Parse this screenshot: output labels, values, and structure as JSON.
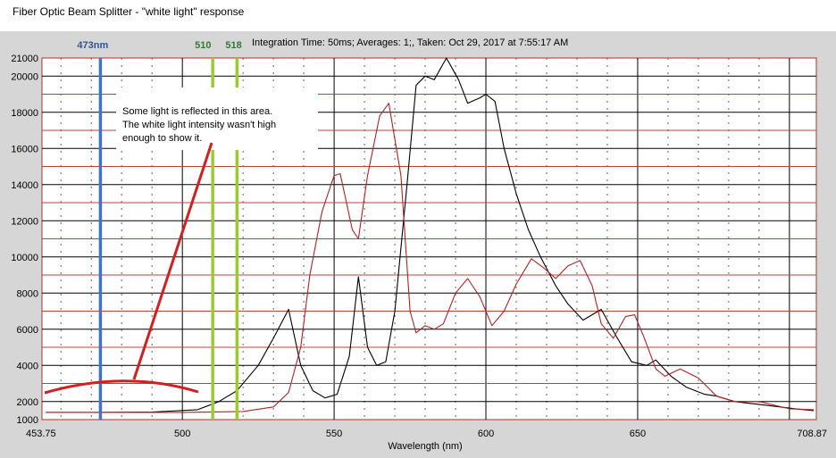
{
  "window": {
    "title": "Fiber Optic Beam Splitter - \"white light\" response"
  },
  "header_info": "Integration Time: 50ms;  Averages: 1;,  Taken: Oct 29, 2017 at 7:55:17 AM",
  "annotation": {
    "lines": [
      "Some light is    reflected    in this area.",
      "The white light intensity wasn't high",
      "enough to show it."
    ]
  },
  "markers": [
    {
      "label": "473nm",
      "x": 473,
      "color": "#4472c4"
    },
    {
      "label": "510",
      "x": 510,
      "color": "#99cc33"
    },
    {
      "label": "518",
      "x": 518,
      "color": "#99cc33"
    }
  ],
  "chart_data": {
    "type": "line",
    "title": "Fiber Optic Beam Splitter - \"white light\" response",
    "xlabel": "Wavelength (nm)",
    "ylabel": "",
    "xlim": [
      453.75,
      708.87
    ],
    "ylim": [
      1000,
      21000
    ],
    "x_tick_labels": [
      "453.75",
      "500",
      "550",
      "600",
      "650",
      "708.87"
    ],
    "x_ticks": [
      453.75,
      500,
      550,
      600,
      650,
      708.87
    ],
    "y_ticks": [
      1000,
      2000,
      4000,
      6000,
      8000,
      10000,
      12000,
      14000,
      16000,
      18000,
      20000,
      21000
    ],
    "y_tick_labels": [
      "1000",
      "2000",
      "4000",
      "6000",
      "8000",
      "10000",
      "12000",
      "14000",
      "16000",
      "18000",
      "20000",
      "21000"
    ],
    "grid": true,
    "series": [
      {
        "color": "#000000",
        "points": [
          [
            455,
            1400
          ],
          [
            470,
            1400
          ],
          [
            490,
            1420
          ],
          [
            505,
            1550
          ],
          [
            512,
            2000
          ],
          [
            518,
            2600
          ],
          [
            525,
            4000
          ],
          [
            530,
            5500
          ],
          [
            535,
            7100
          ],
          [
            539,
            4000
          ],
          [
            543,
            2600
          ],
          [
            547,
            2200
          ],
          [
            551,
            2400
          ],
          [
            555,
            4500
          ],
          [
            558,
            8900
          ],
          [
            561,
            5000
          ],
          [
            564,
            4000
          ],
          [
            567,
            4200
          ],
          [
            570,
            7000
          ],
          [
            574,
            14000
          ],
          [
            577,
            19500
          ],
          [
            580,
            20000
          ],
          [
            583,
            19800
          ],
          [
            587,
            21000
          ],
          [
            591,
            19800
          ],
          [
            594,
            18500
          ],
          [
            598,
            18800
          ],
          [
            600,
            19000
          ],
          [
            603,
            18600
          ],
          [
            606,
            16000
          ],
          [
            610,
            13500
          ],
          [
            614,
            11500
          ],
          [
            618,
            10000
          ],
          [
            623,
            8400
          ],
          [
            627,
            7400
          ],
          [
            632,
            6500
          ],
          [
            638,
            7100
          ],
          [
            643,
            5600
          ],
          [
            648,
            4200
          ],
          [
            653,
            4000
          ],
          [
            656,
            4300
          ],
          [
            661,
            3400
          ],
          [
            666,
            2800
          ],
          [
            672,
            2400
          ],
          [
            676,
            2300
          ],
          [
            682,
            2000
          ],
          [
            692,
            1800
          ],
          [
            702,
            1600
          ],
          [
            708,
            1500
          ]
        ]
      },
      {
        "color": "#b22222",
        "points": [
          [
            455,
            1400
          ],
          [
            500,
            1400
          ],
          [
            520,
            1450
          ],
          [
            530,
            1700
          ],
          [
            535,
            2500
          ],
          [
            539,
            5000
          ],
          [
            542,
            9000
          ],
          [
            546,
            12500
          ],
          [
            550,
            14500
          ],
          [
            552,
            14600
          ],
          [
            556,
            11500
          ],
          [
            558,
            11000
          ],
          [
            561,
            14500
          ],
          [
            565,
            17800
          ],
          [
            568,
            18500
          ],
          [
            572,
            14500
          ],
          [
            575,
            7000
          ],
          [
            577,
            5800
          ],
          [
            580,
            6200
          ],
          [
            583,
            6000
          ],
          [
            586,
            6300
          ],
          [
            590,
            8000
          ],
          [
            594,
            8800
          ],
          [
            598,
            7800
          ],
          [
            602,
            6200
          ],
          [
            606,
            7000
          ],
          [
            610,
            8500
          ],
          [
            615,
            9900
          ],
          [
            619,
            9400
          ],
          [
            623,
            8800
          ],
          [
            627,
            9500
          ],
          [
            631,
            9800
          ],
          [
            635,
            8400
          ],
          [
            638,
            6300
          ],
          [
            642,
            5500
          ],
          [
            646,
            6700
          ],
          [
            649,
            6800
          ],
          [
            652,
            5600
          ],
          [
            656,
            3800
          ],
          [
            659,
            3400
          ],
          [
            664,
            3800
          ],
          [
            670,
            3300
          ],
          [
            676,
            2300
          ],
          [
            682,
            2000
          ],
          [
            690,
            2000
          ],
          [
            700,
            1600
          ],
          [
            708,
            1550
          ]
        ]
      }
    ]
  },
  "style": {
    "plot_bg": "#ffffff",
    "frame_bg": "#d6d6d6",
    "grid_major": "#000000",
    "grid_minor": "#c04040",
    "arrow_color": "#d21f1f"
  }
}
